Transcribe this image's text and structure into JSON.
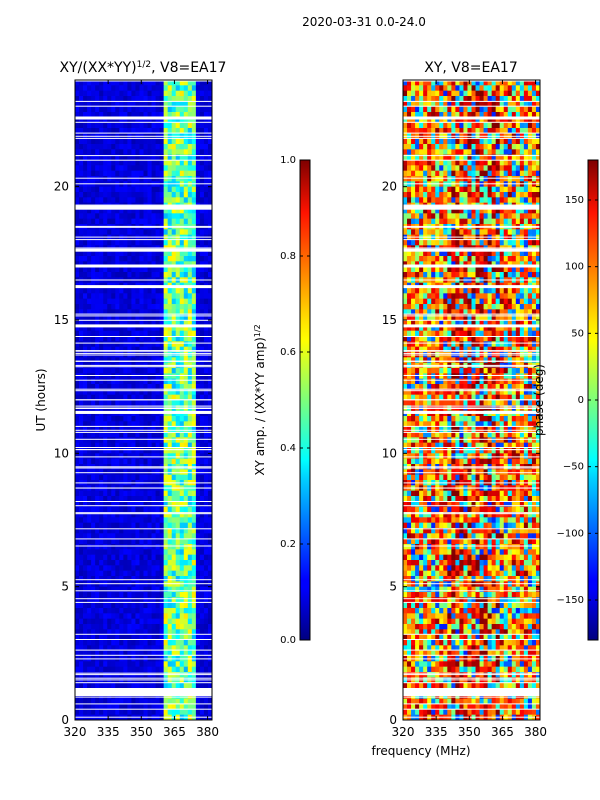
{
  "suptitle": "2020-03-31 0.0-24.0",
  "chart_data": [
    {
      "type": "heatmap",
      "title_main": "XY/(XX*YY)",
      "title_exp": "1/2",
      "title_tail": ", V8=EA17",
      "xlabel": "",
      "ylabel": "UT (hours)",
      "xlim": [
        320,
        382
      ],
      "ylim": [
        0,
        24
      ],
      "xticks": [
        "320",
        "335",
        "350",
        "365",
        "380"
      ],
      "xtick_values": [
        320,
        335,
        350,
        365,
        380
      ],
      "yticks": [
        "0",
        "5",
        "10",
        "15",
        "20"
      ],
      "ytick_values": [
        0,
        5,
        10,
        15,
        20
      ],
      "colormap": "jet",
      "colorbar": {
        "label_main": "XY amp. / (XX*YY amp)",
        "label_exp": "1/2",
        "range": [
          0.0,
          1.0
        ],
        "ticks": [
          "0.0",
          "0.2",
          "0.4",
          "0.6",
          "0.8",
          "1.0"
        ],
        "tick_values": [
          0.0,
          0.2,
          0.4,
          0.6,
          0.8,
          1.0
        ]
      }
    },
    {
      "type": "heatmap",
      "title": "XY, V8=EA17",
      "xlabel": "frequency (MHz)",
      "ylabel": "",
      "xlim": [
        320,
        382
      ],
      "ylim": [
        0,
        24
      ],
      "xticks": [
        "320",
        "335",
        "350",
        "365",
        "380"
      ],
      "xtick_values": [
        320,
        335,
        350,
        365,
        380
      ],
      "yticks": [
        "0",
        "5",
        "10",
        "15",
        "20"
      ],
      "ytick_values": [
        0,
        5,
        10,
        15,
        20
      ],
      "colormap": "jet",
      "colorbar": {
        "label": "phase (deg)",
        "range": [
          -180,
          180
        ],
        "ticks": [
          "−150",
          "−100",
          "−50",
          "0",
          "50",
          "100",
          "150"
        ],
        "tick_values": [
          -150,
          -100,
          -50,
          0,
          50,
          100,
          150
        ]
      }
    }
  ]
}
